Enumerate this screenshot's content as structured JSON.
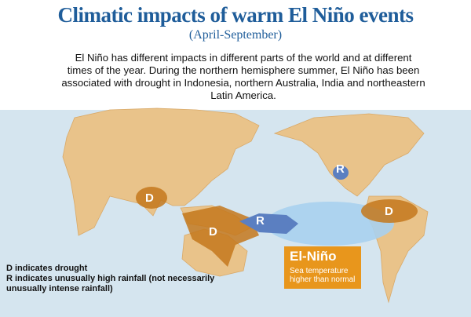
{
  "header": {
    "title": "Climatic impacts of warm El Niño events",
    "subtitle": "(April-September)"
  },
  "description": [
    "El Niño has different impacts in different parts of the world and at different",
    "times of the year. During the northern hemisphere summer, El Niño has been",
    "associated with drought in Indonesia, northern Australia, India and northeastern",
    "Latin America."
  ],
  "map_labels": [
    "D",
    "D",
    "D",
    "R",
    "R"
  ],
  "el_nino": {
    "title": "El-Niño",
    "caption": [
      "Sea temperature",
      "higher than normal"
    ]
  },
  "legend": [
    "D indicates drought",
    "R indicates unusually high rainfall (not necessarily unusually intense rainfall)"
  ]
}
